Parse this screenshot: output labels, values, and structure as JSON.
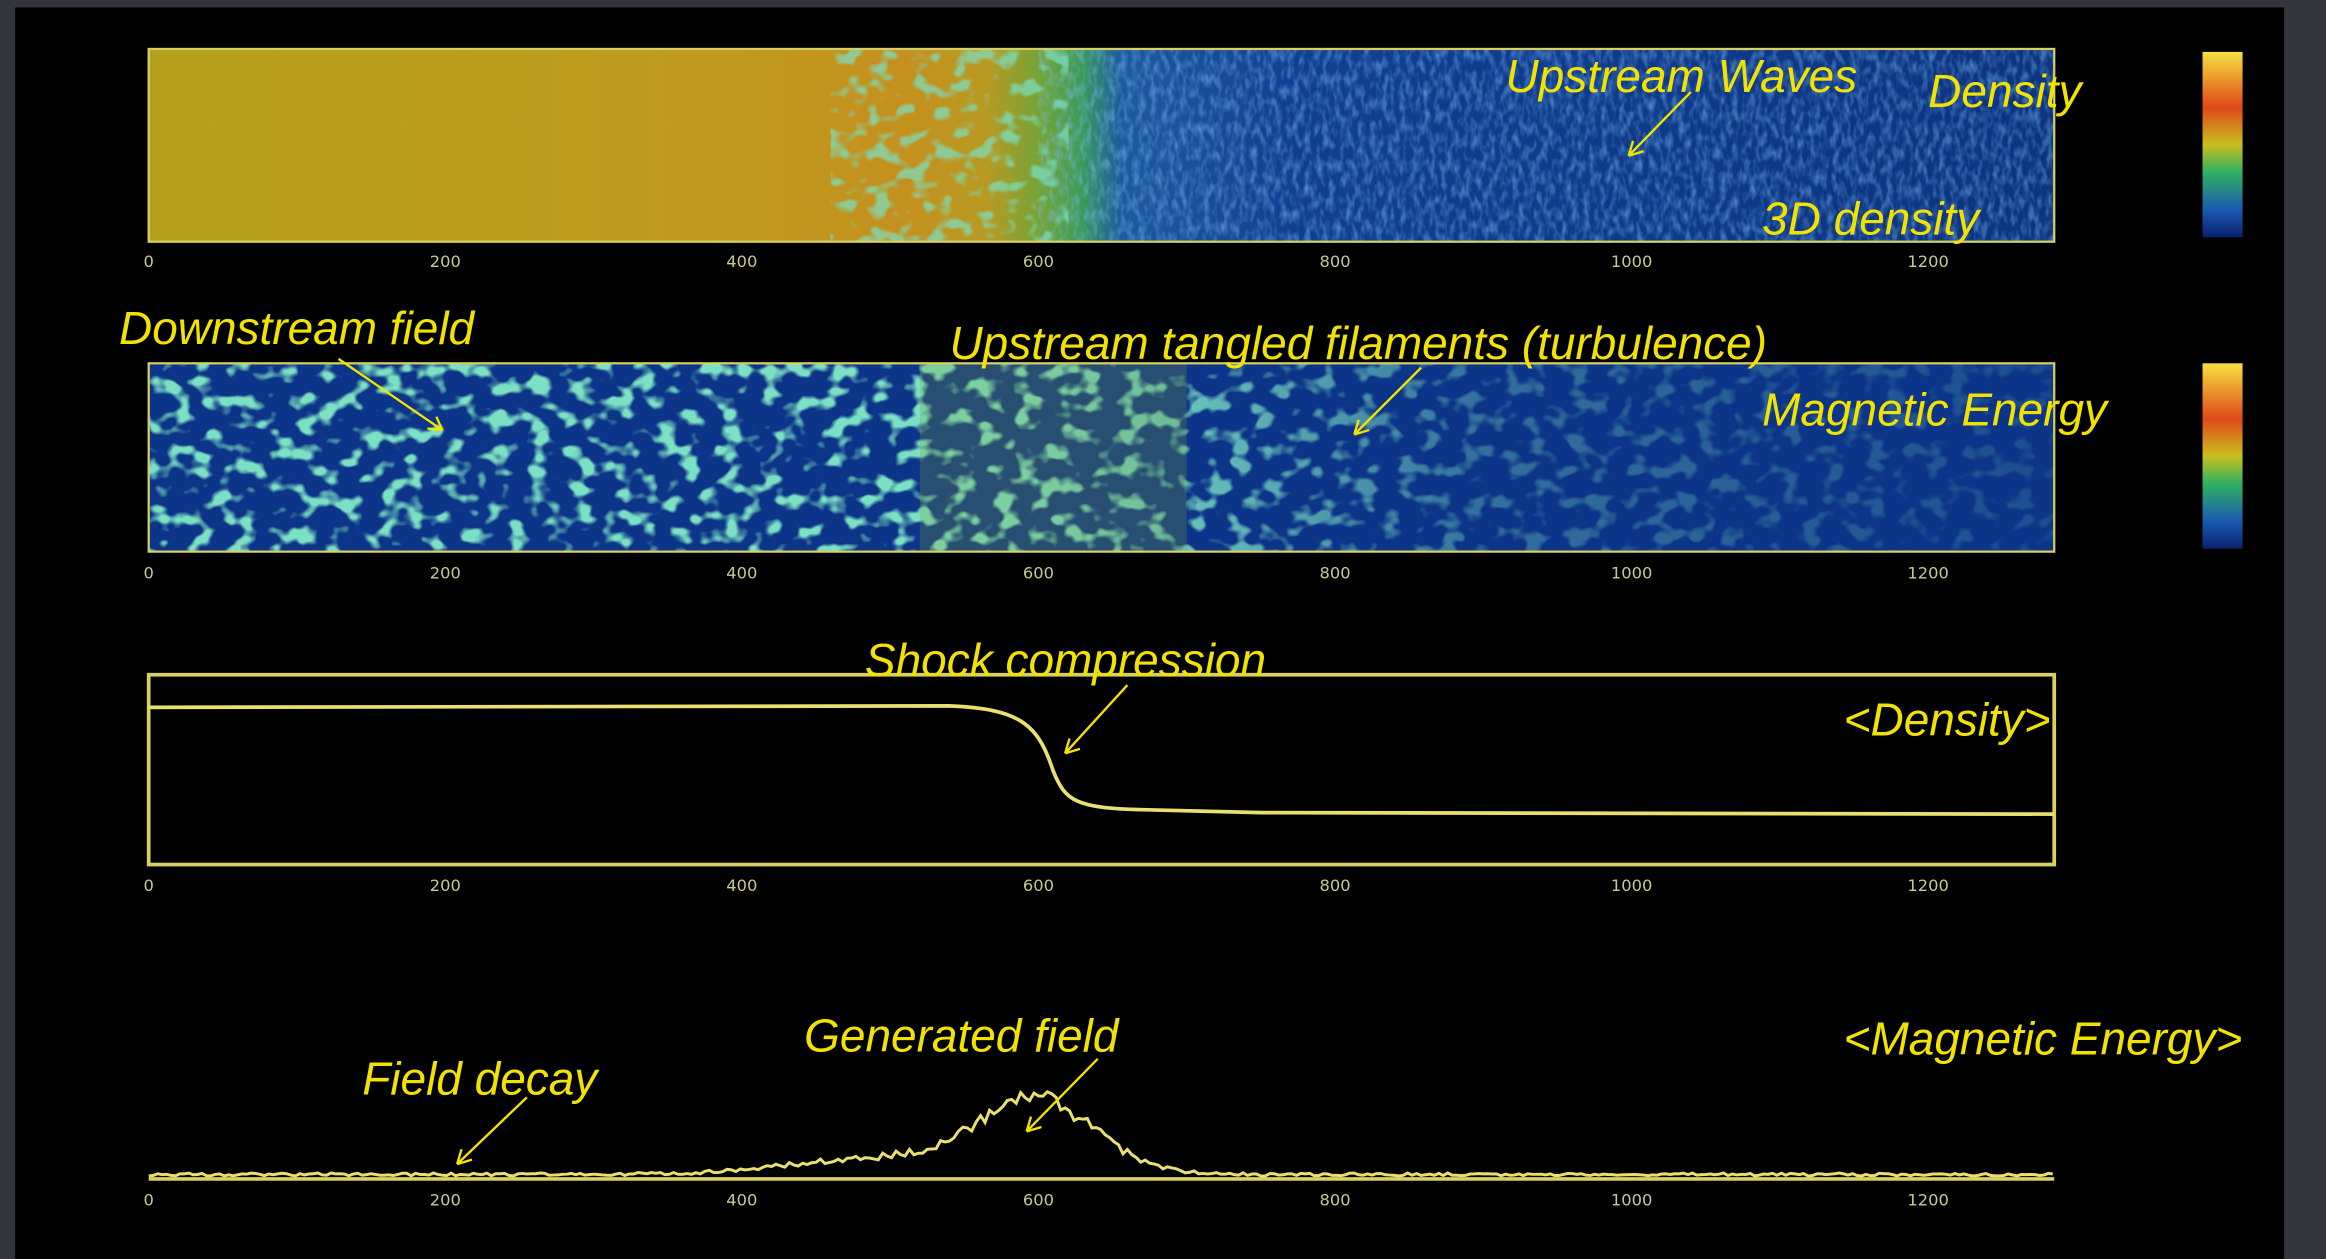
{
  "slide": {
    "panels": [
      {
        "annotations": [
          "Upstream Waves",
          "Density",
          "3D density"
        ],
        "x_ticks": [
          "0",
          "200",
          "400",
          "600",
          "800",
          "1000",
          "1200"
        ]
      },
      {
        "annotations": [
          "Downstream field",
          "Upstream tangled filaments (turbulence)",
          "Magnetic Energy"
        ],
        "x_ticks": [
          "0",
          "200",
          "400",
          "600",
          "800",
          "1000",
          "1200"
        ]
      },
      {
        "annotations": [
          "Shock compression",
          "<Density>"
        ],
        "x_ticks": [
          "0",
          "200",
          "400",
          "600",
          "800",
          "1000",
          "1200"
        ]
      },
      {
        "annotations": [
          "Generated field",
          "Field decay",
          "<Magnetic Energy>"
        ],
        "x_ticks": [
          "0",
          "200",
          "400",
          "600",
          "800",
          "1000",
          "1200"
        ]
      }
    ]
  }
}
